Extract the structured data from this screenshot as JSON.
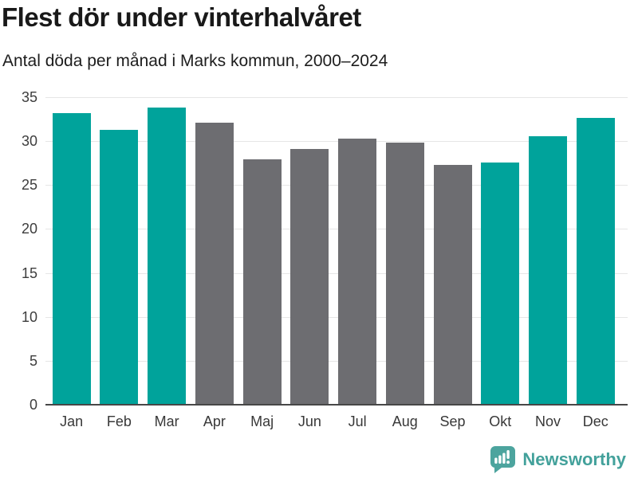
{
  "title": "Flest dör under vinterhalvåret",
  "subtitle": "Antal döda per månad i Marks kommun, 2000–2024",
  "footer": {
    "brand": "Newsworthy",
    "logo_icon": "bar-chart-speech-bubble-icon"
  },
  "colors": {
    "highlight_teal": "#00a39b",
    "default_gray": "#6d6d71",
    "axis": "#474747",
    "gridline": "#e6e6e6",
    "title_text": "#191919",
    "tick_text": "#3d3d3d",
    "brand_teal": "#43a19b",
    "logo_bg": "#4ca49e"
  },
  "chart_data": {
    "type": "bar",
    "title": "Flest dör under vinterhalvåret",
    "subtitle": "Antal döda per månad i Marks kommun, 2000–2024",
    "categories": [
      "Jan",
      "Feb",
      "Mar",
      "Apr",
      "Maj",
      "Jun",
      "Jul",
      "Aug",
      "Sep",
      "Okt",
      "Nov",
      "Dec"
    ],
    "values": [
      33.2,
      31.3,
      33.8,
      32.1,
      27.9,
      29.1,
      30.3,
      29.8,
      27.3,
      27.6,
      30.6,
      32.6
    ],
    "highlighted": [
      true,
      true,
      true,
      false,
      false,
      false,
      false,
      false,
      false,
      true,
      true,
      true
    ],
    "highlight_meaning": "winter half-year months (teal), summer half-year months (gray)",
    "xlabel": "",
    "ylabel": "",
    "ylim": [
      0,
      35
    ],
    "yticks": [
      0,
      5,
      10,
      15,
      20,
      25,
      30,
      35
    ],
    "grid": true,
    "legend": "none"
  }
}
